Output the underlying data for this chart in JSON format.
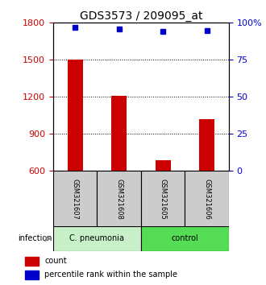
{
  "title": "GDS3573 / 209095_at",
  "samples": [
    "GSM321607",
    "GSM321608",
    "GSM321605",
    "GSM321606"
  ],
  "counts": [
    1500,
    1210,
    690,
    1020
  ],
  "percentiles": [
    97,
    96,
    94,
    95
  ],
  "ylim_left": [
    600,
    1800
  ],
  "yticks_left": [
    600,
    900,
    1200,
    1500,
    1800
  ],
  "ylim_right": [
    0,
    100
  ],
  "yticks_right": [
    0,
    25,
    50,
    75,
    100
  ],
  "bar_color": "#cc0000",
  "dot_color": "#0000cc",
  "bar_bottom": 600,
  "groups": [
    {
      "label": "C. pneumonia",
      "indices": [
        0,
        1
      ],
      "color": "#c8f0c8"
    },
    {
      "label": "control",
      "indices": [
        2,
        3
      ],
      "color": "#55dd55"
    }
  ],
  "group_label_x": "infection",
  "legend_count_label": "count",
  "legend_pct_label": "percentile rank within the sample",
  "title_fontsize": 10,
  "axis_label_color_left": "#cc0000",
  "axis_label_color_right": "#0000cc",
  "sample_box_color": "#cccccc",
  "background_color": "#ffffff",
  "dotted_lines": [
    900,
    1200,
    1500
  ]
}
